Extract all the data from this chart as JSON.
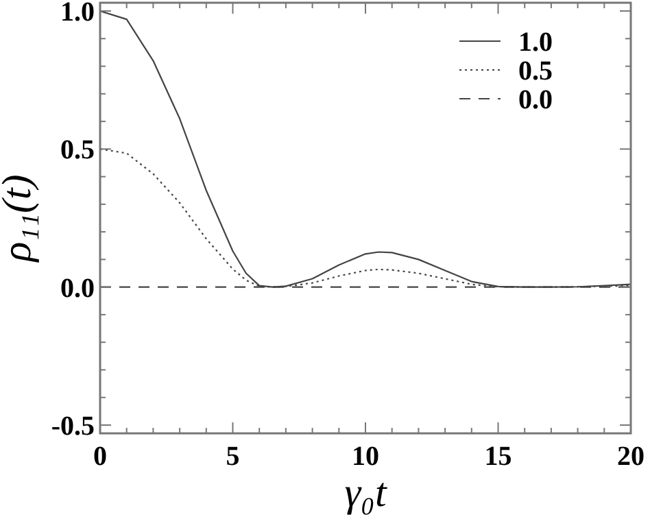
{
  "chart_data": {
    "type": "line",
    "xlabel": "γ₀t",
    "ylabel": "ρ₁₁(t)",
    "xlim": [
      0,
      20
    ],
    "ylim": [
      -0.53,
      1.03
    ],
    "xticks": [
      0,
      {
        "value": 1,
        "label": null
      },
      {
        "value": 2,
        "label": null
      },
      {
        "value": 3,
        "label": null
      },
      {
        "value": 4,
        "label": null
      },
      5,
      {
        "value": 6,
        "label": null
      },
      {
        "value": 7,
        "label": null
      },
      {
        "value": 8,
        "label": null
      },
      {
        "value": 9,
        "label": null
      },
      10,
      {
        "value": 11,
        "label": null
      },
      {
        "value": 12,
        "label": null
      },
      {
        "value": 13,
        "label": null
      },
      {
        "value": 14,
        "label": null
      },
      15,
      {
        "value": 16,
        "label": null
      },
      {
        "value": 17,
        "label": null
      },
      {
        "value": 18,
        "label": null
      },
      {
        "value": 19,
        "label": null
      },
      20
    ],
    "yticks": [
      {
        "value": -0.5,
        "label": "-0.5"
      },
      {
        "value": -0.4,
        "label": null
      },
      {
        "value": -0.3,
        "label": null
      },
      {
        "value": -0.2,
        "label": null
      },
      {
        "value": -0.1,
        "label": null
      },
      {
        "value": 0,
        "label": "0.0"
      },
      {
        "value": 0.1,
        "label": null
      },
      {
        "value": 0.2,
        "label": null
      },
      {
        "value": 0.3,
        "label": null
      },
      {
        "value": 0.4,
        "label": null
      },
      {
        "value": 0.5,
        "label": "0.5"
      },
      {
        "value": 0.6,
        "label": null
      },
      {
        "value": 0.7,
        "label": null
      },
      {
        "value": 0.8,
        "label": null
      },
      {
        "value": 0.9,
        "label": null
      },
      {
        "value": 1,
        "label": "1.0"
      }
    ],
    "x": [
      0,
      1,
      2,
      3,
      4,
      5,
      5.5,
      6,
      6.5,
      7,
      8,
      9,
      10,
      10.5,
      11,
      12,
      13,
      14,
      15,
      16,
      17,
      18,
      19,
      20
    ],
    "legend": "top right",
    "grid": false,
    "series": [
      {
        "name": "1.0",
        "color": "#444444",
        "line_style": "solid",
        "values": [
          1.0,
          0.97,
          0.82,
          0.61,
          0.35,
          0.13,
          0.05,
          0.005,
          0,
          0.003,
          0.03,
          0.08,
          0.12,
          0.127,
          0.125,
          0.1,
          0.06,
          0.02,
          0.002,
          0,
          0,
          0.001,
          0.005,
          0.01
        ]
      },
      {
        "name": "0.5",
        "color": "#444444",
        "line_style": "dotted",
        "values": [
          0.5,
          0.485,
          0.41,
          0.305,
          0.175,
          0.065,
          0.025,
          0.003,
          0,
          0.002,
          0.015,
          0.04,
          0.06,
          0.064,
          0.062,
          0.05,
          0.03,
          0.01,
          0.001,
          0,
          0,
          0.001,
          0.003,
          0.005
        ]
      },
      {
        "name": "0.0",
        "color": "#444444",
        "line_style": "dashed",
        "values": [
          0,
          0,
          0,
          0,
          0,
          0,
          0,
          0,
          0,
          0,
          0,
          0,
          0,
          0,
          0,
          0,
          0,
          0,
          0,
          0,
          0,
          0,
          0,
          0
        ]
      }
    ]
  }
}
